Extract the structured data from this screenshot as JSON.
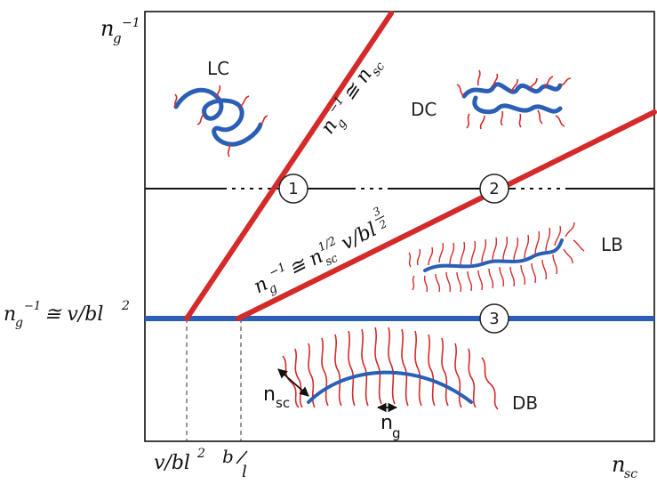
{
  "axes": {
    "y_label": "n_g^{-1}",
    "x_label": "n_{sc}",
    "y_tick": "n_g^{-1} ≅ v/bl^2",
    "x_tick_1": "v/bl^2",
    "x_tick_2": "b/l"
  },
  "lines": {
    "upper_red": "n_g^{-1} ≅ n_{sc}",
    "lower_red": "n_g^{-1} ≅ n_{sc}^{1/2} v/bl^{3/2}"
  },
  "regions": {
    "lc": "LC",
    "dc": "DC",
    "lb": "LB",
    "db": "DB"
  },
  "circles": [
    "1",
    "2",
    "3"
  ],
  "annotations": {
    "nsc": "n_sc",
    "ng": "n_g"
  },
  "colors": {
    "red": "#d42a2a",
    "blue": "#2a5fb5",
    "black": "#111111"
  }
}
